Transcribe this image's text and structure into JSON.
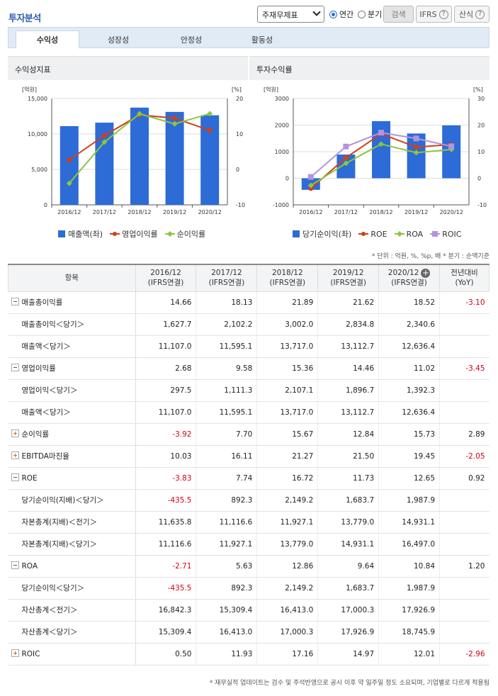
{
  "header": {
    "title": "투자분석",
    "statement_select": "주재무제표",
    "radio_annual": "연간",
    "radio_quarter": "분기",
    "search_btn": "검색",
    "ifrs_btn": "IFRS",
    "formula_btn": "산식",
    "help_icon": "?"
  },
  "tabs": [
    "수익성",
    "성장성",
    "안정성",
    "활동성"
  ],
  "colors": {
    "bar": "#2d6bd6",
    "red": "#d0401c",
    "green": "#8cc63f",
    "purple": "#b493e0",
    "negative": "#d0021b"
  },
  "panels": {
    "left_title": "수익성지표",
    "right_title": "투자수익률"
  },
  "chart_data": [
    {
      "type": "bar+line",
      "title": "수익성지표",
      "categories": [
        "2016/12",
        "2017/12",
        "2018/12",
        "2019/12",
        "2020/12"
      ],
      "y_left": {
        "unit": "[억원]",
        "range": [
          0,
          15000
        ],
        "ticks": [
          "15,000",
          "10,000",
          "5,000",
          "0"
        ]
      },
      "y_right": {
        "unit": "[%]",
        "range": [
          -10,
          20
        ],
        "ticks": [
          "20",
          "10",
          "0",
          "-10"
        ]
      },
      "series": [
        {
          "name": "매출액(좌)",
          "kind": "bar",
          "axis": "left",
          "values": [
            11107.0,
            11595.1,
            13717.0,
            13112.7,
            12636.4
          ]
        },
        {
          "name": "영업이익률",
          "kind": "line",
          "axis": "right",
          "values": [
            2.68,
            9.58,
            15.36,
            14.46,
            11.02
          ]
        },
        {
          "name": "순이익률",
          "kind": "line",
          "axis": "right",
          "values": [
            -3.92,
            7.7,
            15.67,
            12.84,
            15.73
          ]
        }
      ]
    },
    {
      "type": "bar+line",
      "title": "투자수익률",
      "categories": [
        "2016/12",
        "2017/12",
        "2018/12",
        "2019/12",
        "2020/12"
      ],
      "y_left": {
        "unit": "[억원]",
        "range": [
          -1000,
          3000
        ],
        "ticks": [
          "3000",
          "2000",
          "1000",
          "0",
          "-1000"
        ]
      },
      "y_right": {
        "unit": "[%]",
        "range": [
          -10,
          30
        ],
        "ticks": [
          "30",
          "20",
          "10",
          "0",
          "-10"
        ]
      },
      "series": [
        {
          "name": "당기순이익(좌)",
          "kind": "bar",
          "axis": "left",
          "values": [
            -435.5,
            892.3,
            2149.2,
            1683.7,
            1987.9
          ]
        },
        {
          "name": "ROE",
          "kind": "line",
          "axis": "right",
          "values": [
            -3.83,
            7.74,
            16.72,
            11.73,
            12.65
          ]
        },
        {
          "name": "ROA",
          "kind": "line",
          "axis": "right",
          "values": [
            -2.71,
            5.63,
            12.86,
            9.64,
            10.84
          ]
        },
        {
          "name": "ROIC",
          "kind": "line",
          "axis": "right",
          "values": [
            0.5,
            11.93,
            17.16,
            14.97,
            12.01
          ]
        }
      ]
    }
  ],
  "unit_note": "* 단위 : 억원, %, %p, 배   * 분기 : 순액기준",
  "table": {
    "headers": [
      "항목",
      "2016/12\n(IFRS연결)",
      "2017/12\n(IFRS연결)",
      "2018/12\n(IFRS연결)",
      "2019/12\n(IFRS연결)",
      "2020/12\n(IFRS연결)",
      "전년대비\n(YoY)"
    ],
    "rows": [
      {
        "name": "매출총이익률",
        "type": "minus",
        "values": [
          "14.66",
          "18.13",
          "21.89",
          "21.62",
          "18.52"
        ],
        "yoy": "-3.10"
      },
      {
        "name": "매출총이익＜당기＞",
        "type": "sub",
        "values": [
          "1,627.7",
          "2,102.2",
          "3,002.0",
          "2,834.8",
          "2,340.6"
        ],
        "yoy": ""
      },
      {
        "name": "매출액＜당기＞",
        "type": "sub",
        "values": [
          "11,107.0",
          "11,595.1",
          "13,717.0",
          "13,112.7",
          "12,636.4"
        ],
        "yoy": ""
      },
      {
        "name": "영업이익률",
        "type": "minus",
        "values": [
          "2.68",
          "9.58",
          "15.36",
          "14.46",
          "11.02"
        ],
        "yoy": "-3.45"
      },
      {
        "name": "영업이익＜당기＞",
        "type": "sub",
        "values": [
          "297.5",
          "1,111.3",
          "2,107.1",
          "1,896.7",
          "1,392.3"
        ],
        "yoy": ""
      },
      {
        "name": "매출액＜당기＞",
        "type": "sub",
        "values": [
          "11,107.0",
          "11,595.1",
          "13,717.0",
          "13,112.7",
          "12,636.4"
        ],
        "yoy": ""
      },
      {
        "name": "순이익률",
        "type": "plus",
        "values": [
          "-3.92",
          "7.70",
          "15.67",
          "12.84",
          "15.73"
        ],
        "yoy": "2.89"
      },
      {
        "name": "EBITDA마진율",
        "type": "plus",
        "values": [
          "10.03",
          "16.11",
          "21.27",
          "21.50",
          "19.45"
        ],
        "yoy": "-2.05"
      },
      {
        "name": "ROE",
        "type": "minus",
        "values": [
          "-3.83",
          "7.74",
          "16.72",
          "11.73",
          "12.65"
        ],
        "yoy": "0.92"
      },
      {
        "name": "당기순이익(지배)＜당기＞",
        "type": "sub",
        "values": [
          "-435.5",
          "892.3",
          "2,149.2",
          "1,683.7",
          "1,987.9"
        ],
        "yoy": ""
      },
      {
        "name": "자본총계(지배)＜전기＞",
        "type": "sub",
        "values": [
          "11,635.8",
          "11,116.6",
          "11,927.1",
          "13,779.0",
          "14,931.1"
        ],
        "yoy": ""
      },
      {
        "name": "자본총계(지배)＜당기＞",
        "type": "sub",
        "values": [
          "11,116.6",
          "11,927.1",
          "13,779.0",
          "14,931.1",
          "16,497.0"
        ],
        "yoy": ""
      },
      {
        "name": "ROA",
        "type": "minus",
        "values": [
          "-2.71",
          "5.63",
          "12.86",
          "9.64",
          "10.84"
        ],
        "yoy": "1.20"
      },
      {
        "name": "당기순이익＜당기＞",
        "type": "sub",
        "values": [
          "-435.5",
          "892.3",
          "2,149.2",
          "1,683.7",
          "1,987.9"
        ],
        "yoy": ""
      },
      {
        "name": "자산총계＜전기＞",
        "type": "sub",
        "values": [
          "16,842.3",
          "15,309.4",
          "16,413.0",
          "17,000.3",
          "17,926.9"
        ],
        "yoy": ""
      },
      {
        "name": "자산총계＜당기＞",
        "type": "sub",
        "values": [
          "15,309.4",
          "16,413.0",
          "17,000.3",
          "17,926.9",
          "18,745.9"
        ],
        "yoy": ""
      },
      {
        "name": "ROIC",
        "type": "plus",
        "values": [
          "0.50",
          "11.93",
          "17.16",
          "14.97",
          "12.01"
        ],
        "yoy": "-2.96"
      }
    ]
  },
  "footer_note": "* 재무실적 업데이트는 검수 및 주석반영으로 공시 이후 약 일주일 정도 소요되며, 기업별로 다르게 적용됨"
}
